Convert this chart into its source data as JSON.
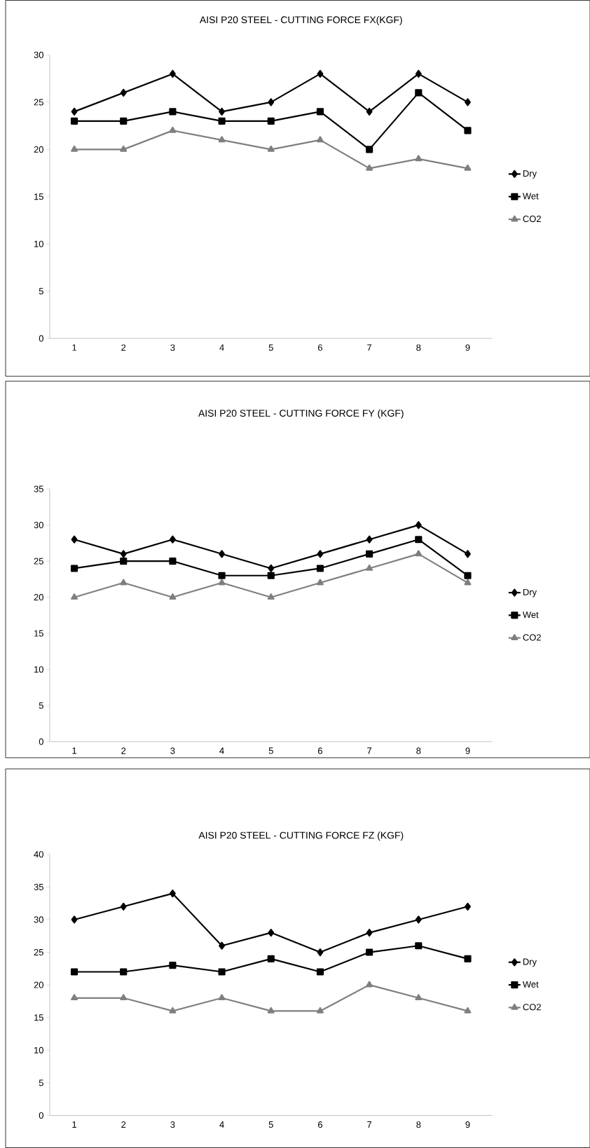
{
  "chart_data": [
    {
      "type": "line",
      "title": "AISI P20 STEEL - CUTTING FORCE FX(KGF)",
      "categories": [
        "1",
        "2",
        "3",
        "4",
        "5",
        "6",
        "7",
        "8",
        "9"
      ],
      "series": [
        {
          "name": "Dry",
          "color": "#000000",
          "marker": "diamond",
          "values": [
            24,
            26,
            28,
            24,
            25,
            28,
            24,
            28,
            25
          ]
        },
        {
          "name": "Wet",
          "color": "#000000",
          "marker": "square",
          "values": [
            23,
            23,
            24,
            23,
            23,
            24,
            20,
            26,
            22
          ]
        },
        {
          "name": "CO2",
          "color": "#7f7f7f",
          "marker": "triangle",
          "values": [
            20,
            20,
            22,
            21,
            20,
            21,
            18,
            19,
            18
          ]
        }
      ],
      "ylim": [
        0,
        30
      ],
      "yticks": [
        0,
        5,
        10,
        15,
        20,
        25,
        30
      ],
      "legend": "right",
      "grid": false
    },
    {
      "type": "line",
      "title": "AISI P20 STEEL - CUTTING FORCE FY (KGF)",
      "categories": [
        "1",
        "2",
        "3",
        "4",
        "5",
        "6",
        "7",
        "8",
        "9"
      ],
      "series": [
        {
          "name": "Dry",
          "color": "#000000",
          "marker": "diamond",
          "values": [
            28,
            26,
            28,
            26,
            24,
            26,
            28,
            30,
            26
          ]
        },
        {
          "name": "Wet",
          "color": "#000000",
          "marker": "square",
          "values": [
            24,
            25,
            25,
            23,
            23,
            24,
            26,
            28,
            23
          ]
        },
        {
          "name": "CO2",
          "color": "#7f7f7f",
          "marker": "triangle",
          "values": [
            20,
            22,
            20,
            22,
            20,
            22,
            24,
            26,
            22
          ]
        }
      ],
      "ylim": [
        0,
        35
      ],
      "yticks": [
        0,
        5,
        10,
        15,
        20,
        25,
        30,
        35
      ],
      "legend": "right",
      "grid": false
    },
    {
      "type": "line",
      "title": "AISI P20 STEEL - CUTTING FORCE FZ (KGF)",
      "categories": [
        "1",
        "2",
        "3",
        "4",
        "5",
        "6",
        "7",
        "8",
        "9"
      ],
      "series": [
        {
          "name": "Dry",
          "color": "#000000",
          "marker": "diamond",
          "values": [
            30,
            32,
            34,
            26,
            28,
            25,
            28,
            30,
            32
          ]
        },
        {
          "name": "Wet",
          "color": "#000000",
          "marker": "square",
          "values": [
            22,
            22,
            23,
            22,
            24,
            22,
            25,
            26,
            24
          ]
        },
        {
          "name": "CO2",
          "color": "#7f7f7f",
          "marker": "triangle",
          "values": [
            18,
            18,
            16,
            18,
            16,
            16,
            20,
            18,
            16
          ]
        }
      ],
      "ylim": [
        0,
        40
      ],
      "yticks": [
        0,
        5,
        10,
        15,
        20,
        25,
        30,
        35,
        40
      ],
      "legend": "right",
      "grid": false
    }
  ]
}
